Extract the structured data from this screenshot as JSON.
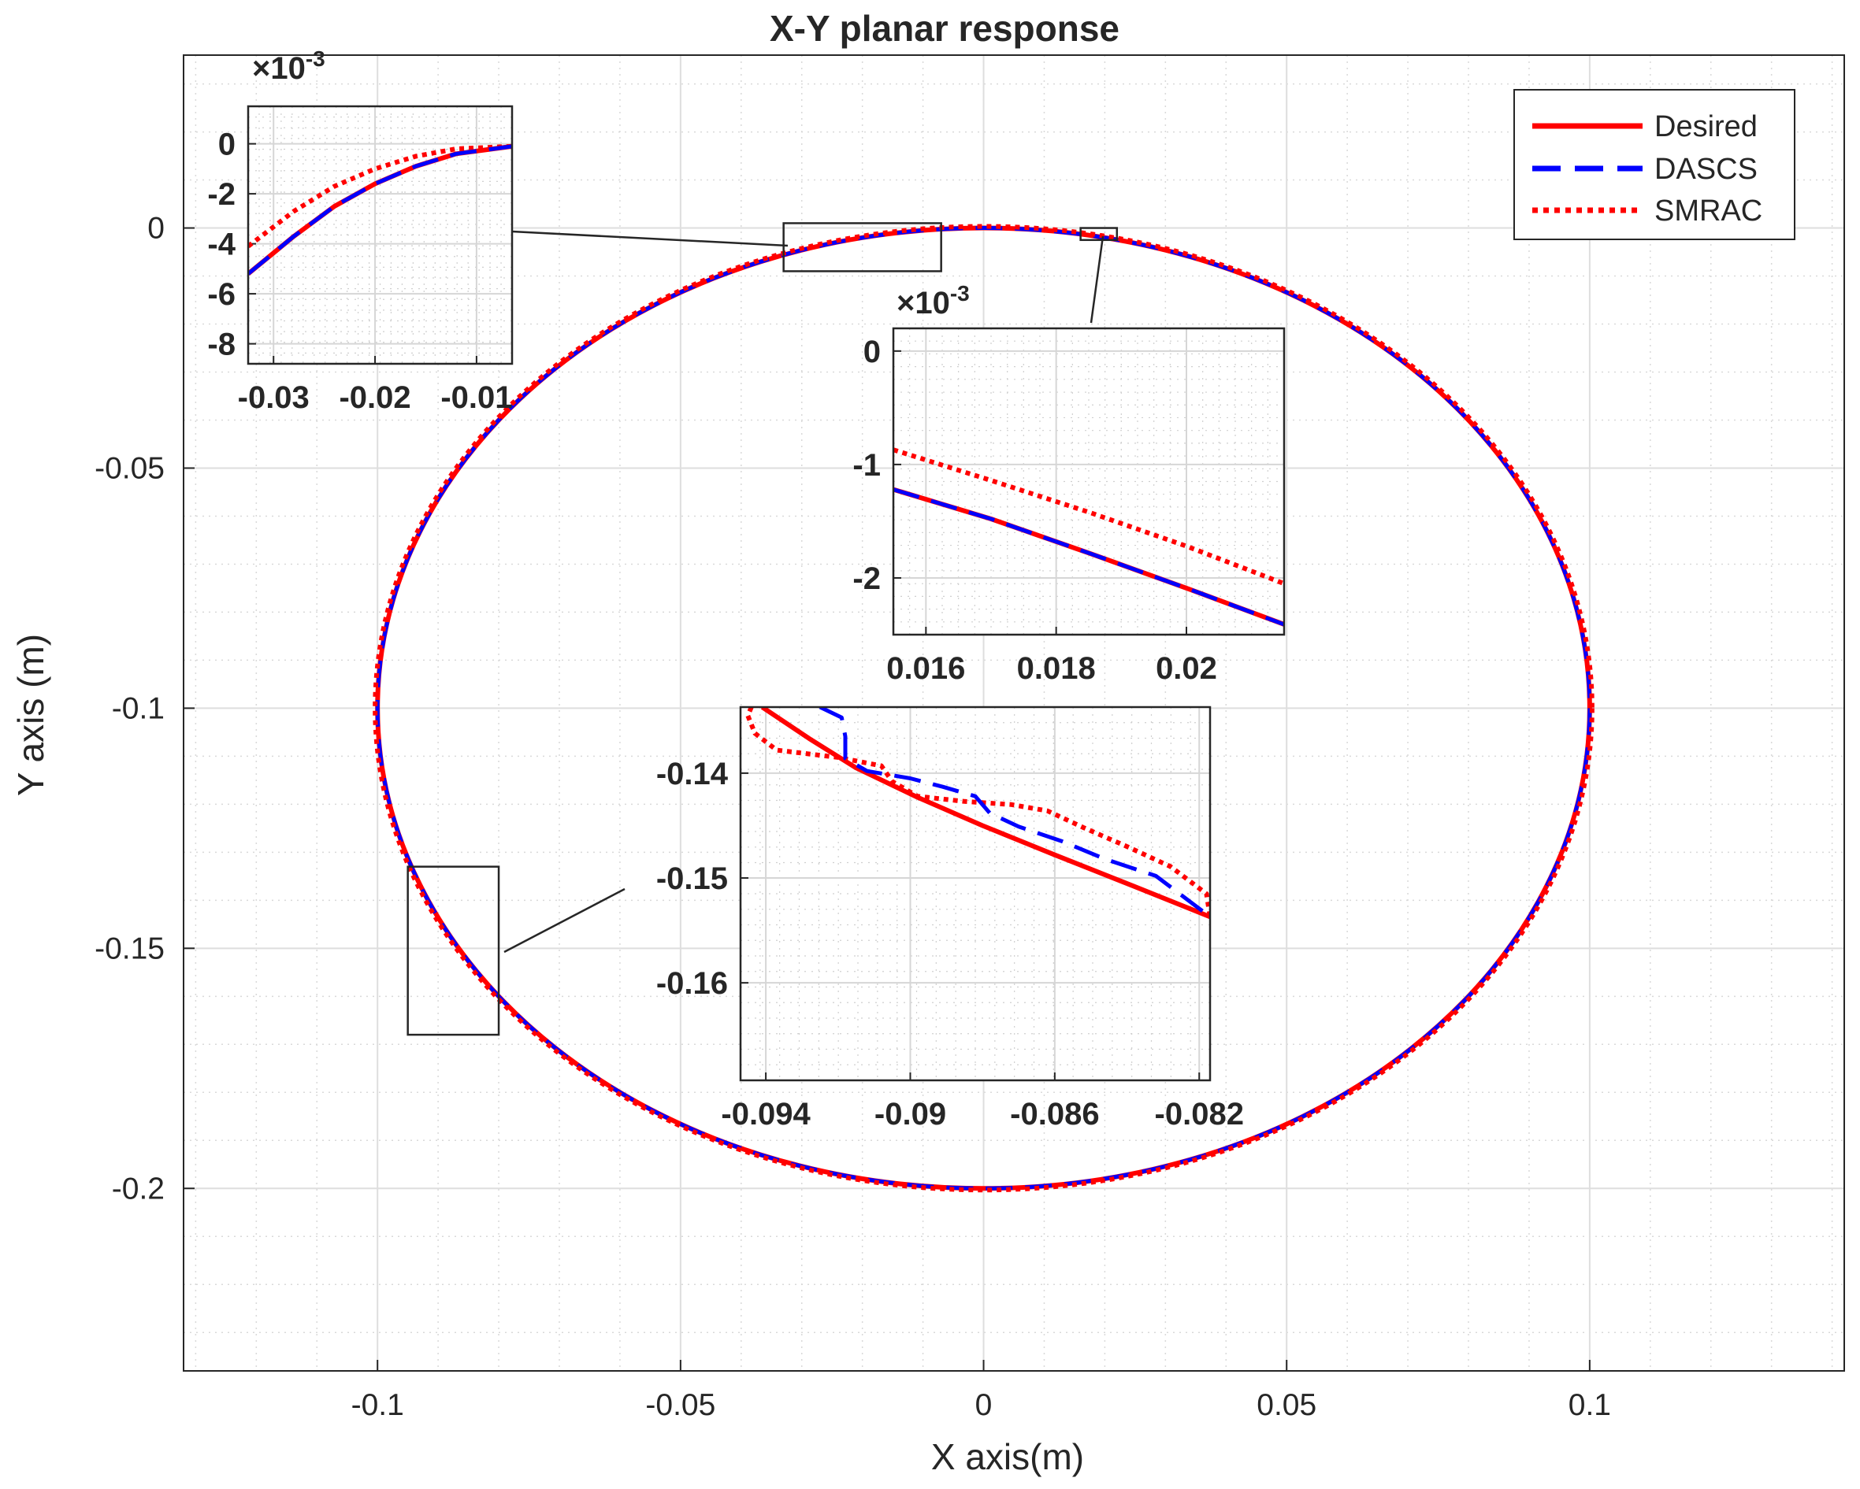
{
  "chart_data": {
    "type": "line",
    "title": "X-Y planar response",
    "xlabel": "X axis(m)",
    "ylabel": "Y axis (m)",
    "xlim": [
      -0.132,
      0.142
    ],
    "ylim": [
      -0.238,
      0.036
    ],
    "xticks": [
      -0.1,
      -0.05,
      0,
      0.05,
      0.1
    ],
    "xtick_labels": [
      "-0.1",
      "-0.05",
      "0",
      "0.05",
      "0.1"
    ],
    "yticks": [
      0,
      -0.05,
      -0.1,
      -0.15,
      -0.2
    ],
    "ytick_labels": [
      "0",
      "-0.05",
      "-0.1",
      "-0.15",
      "-0.2"
    ],
    "grid": true,
    "minor_grid": true,
    "legend": "top-right",
    "colors": {
      "desired": "#ff0000",
      "dascs": "#0000ff",
      "smrac": "#ff0000"
    },
    "series": [
      {
        "name": "Desired",
        "style": "solid",
        "shape": "ellipse",
        "center": [
          0,
          -0.1
        ],
        "radii": [
          0.1,
          0.1
        ]
      },
      {
        "name": "DASCS",
        "style": "dashed",
        "shape": "ellipse",
        "center": [
          0,
          -0.1
        ],
        "radii": [
          0.1,
          0.1
        ]
      },
      {
        "name": "SMRAC",
        "style": "dotted",
        "shape": "ellipse",
        "center": [
          0,
          -0.1
        ],
        "radii": [
          0.1,
          0.1
        ]
      }
    ],
    "insets": [
      {
        "region": {
          "xlim": [
            -0.033,
            -0.007
          ],
          "ylim": [
            -0.009,
            0.001
          ]
        },
        "xlim": [
          -0.0325,
          -0.0065
        ],
        "ylim": [
          -0.0088,
          0.0015
        ],
        "xticks": [
          -0.03,
          -0.02,
          -0.01
        ],
        "xtick_labels": [
          "-0.03",
          "-0.02",
          "-0.01"
        ],
        "yticks": [
          0,
          -0.002,
          -0.004,
          -0.006,
          -0.008
        ],
        "ytick_labels": [
          "0",
          "-2",
          "-4",
          "-6",
          "-8"
        ],
        "exponent_label": "×10",
        "exponent": "-3",
        "lines": {
          "Desired": [
            [
              -0.0325,
              -0.0052
            ],
            [
              -0.028,
              -0.0037
            ],
            [
              -0.024,
              -0.0025
            ],
            [
              -0.02,
              -0.0016
            ],
            [
              -0.016,
              -0.0009
            ],
            [
              -0.012,
              -0.0004
            ],
            [
              -0.0065,
              -0.0001
            ]
          ],
          "DASCS": [
            [
              -0.0325,
              -0.0052
            ],
            [
              -0.028,
              -0.0037
            ],
            [
              -0.024,
              -0.0025
            ],
            [
              -0.02,
              -0.0016
            ],
            [
              -0.016,
              -0.0009
            ],
            [
              -0.012,
              -0.0004
            ],
            [
              -0.0065,
              -0.0001
            ]
          ],
          "SMRAC": [
            [
              -0.0325,
              -0.0041
            ],
            [
              -0.028,
              -0.0027
            ],
            [
              -0.024,
              -0.0017
            ],
            [
              -0.02,
              -0.001
            ],
            [
              -0.016,
              -0.0005
            ],
            [
              -0.012,
              -0.0002
            ],
            [
              -0.0065,
              -0.0001
            ]
          ]
        }
      },
      {
        "region": {
          "xlim": [
            0.016,
            0.022
          ],
          "ylim": [
            -0.0025,
            0
          ]
        },
        "xlim": [
          0.0155,
          0.0215
        ],
        "ylim": [
          -0.0025,
          0.0002
        ],
        "xticks": [
          0.016,
          0.018,
          0.02
        ],
        "xtick_labels": [
          "0.016",
          "0.018",
          "0.02"
        ],
        "yticks": [
          0,
          -0.001,
          -0.002
        ],
        "ytick_labels": [
          "0",
          "-1",
          "-2"
        ],
        "exponent_label": "×10",
        "exponent": "-3",
        "lines": {
          "Desired": [
            [
              0.0155,
              -0.00122
            ],
            [
              0.017,
              -0.00148
            ],
            [
              0.0185,
              -0.00178
            ],
            [
              0.02,
              -0.00209
            ],
            [
              0.0215,
              -0.00241
            ]
          ],
          "DASCS": [
            [
              0.0155,
              -0.00122
            ],
            [
              0.017,
              -0.00148
            ],
            [
              0.0185,
              -0.00178
            ],
            [
              0.02,
              -0.00209
            ],
            [
              0.0215,
              -0.00241
            ]
          ],
          "SMRAC": [
            [
              0.0155,
              -0.00087
            ],
            [
              0.017,
              -0.00114
            ],
            [
              0.0185,
              -0.00142
            ],
            [
              0.02,
              -0.00172
            ],
            [
              0.0215,
              -0.00205
            ]
          ]
        }
      },
      {
        "region": {
          "xlim": [
            -0.095,
            -0.08
          ],
          "ylim": [
            -0.168,
            -0.133
          ]
        },
        "xlim": [
          -0.0947,
          -0.0817
        ],
        "ylim": [
          -0.1693,
          -0.1337
        ],
        "xticks": [
          -0.094,
          -0.09,
          -0.086,
          -0.082
        ],
        "xtick_labels": [
          "-0.094",
          "-0.09",
          "-0.086",
          "-0.082"
        ],
        "yticks": [
          -0.14,
          -0.15,
          -0.16
        ],
        "ytick_labels": [
          "-0.14",
          "-0.15",
          "-0.16"
        ],
        "lines": {
          "Desired": [
            [
              -0.0941,
              -0.1337
            ],
            [
              -0.0928,
              -0.1367
            ],
            [
              -0.0915,
              -0.1395
            ],
            [
              -0.0898,
              -0.1423
            ],
            [
              -0.088,
              -0.145
            ],
            [
              -0.086,
              -0.1478
            ],
            [
              -0.0838,
              -0.1508
            ],
            [
              -0.0817,
              -0.1537
            ]
          ],
          "DASCS": [
            [
              -0.0925,
              -0.1337
            ],
            [
              -0.0919,
              -0.1347
            ],
            [
              -0.0918,
              -0.1365
            ],
            [
              -0.0918,
              -0.1386
            ],
            [
              -0.0912,
              -0.1398
            ],
            [
              -0.09,
              -0.1405
            ],
            [
              -0.0891,
              -0.1413
            ],
            [
              -0.0882,
              -0.1422
            ],
            [
              -0.0878,
              -0.1438
            ],
            [
              -0.087,
              -0.1451
            ],
            [
              -0.0858,
              -0.1465
            ],
            [
              -0.0846,
              -0.1482
            ],
            [
              -0.0832,
              -0.1498
            ],
            [
              -0.0817,
              -0.1537
            ]
          ],
          "SMRAC": [
            [
              -0.0944,
              -0.1337
            ],
            [
              -0.0945,
              -0.1345
            ],
            [
              -0.0943,
              -0.1362
            ],
            [
              -0.0937,
              -0.1378
            ],
            [
              -0.092,
              -0.1385
            ],
            [
              -0.0908,
              -0.1393
            ],
            [
              -0.0905,
              -0.1408
            ],
            [
              -0.0898,
              -0.1422
            ],
            [
              -0.0885,
              -0.1427
            ],
            [
              -0.0872,
              -0.143
            ],
            [
              -0.0862,
              -0.1436
            ],
            [
              -0.0852,
              -0.1452
            ],
            [
              -0.084,
              -0.147
            ],
            [
              -0.0828,
              -0.1489
            ],
            [
              -0.0818,
              -0.1515
            ],
            [
              -0.0817,
              -0.1537
            ]
          ]
        }
      }
    ]
  }
}
